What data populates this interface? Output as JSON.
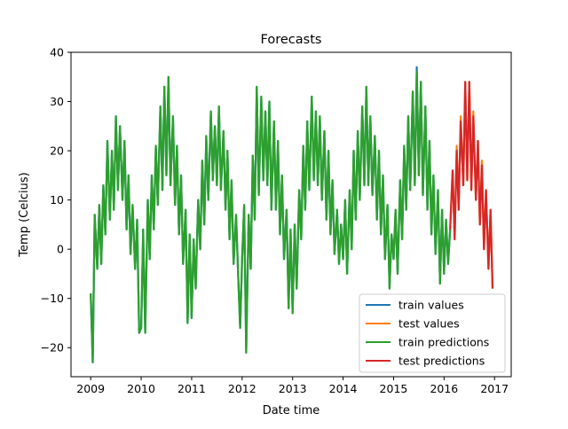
{
  "chart_data": {
    "type": "line",
    "title": "Forecasts",
    "xlabel": "Date time",
    "ylabel": "Temp (Celcius)",
    "xlim": [
      2008.61,
      2017.33
    ],
    "ylim": [
      -25.9,
      40
    ],
    "xticks": [
      2009,
      2010,
      2011,
      2012,
      2013,
      2014,
      2015,
      2016,
      2017
    ],
    "xtick_labels": [
      "2009",
      "2010",
      "2011",
      "2012",
      "2013",
      "2014",
      "2015",
      "2016",
      "2017"
    ],
    "yticks": [
      -20,
      -10,
      0,
      10,
      20,
      30,
      40
    ],
    "ytick_labels": [
      "−20",
      "−10",
      "0",
      "10",
      "20",
      "30",
      "40"
    ],
    "grid": false,
    "legend_position": "lower-right",
    "train_x": [
      2009.0,
      2009.04,
      2009.08,
      2009.13,
      2009.17,
      2009.21,
      2009.25,
      2009.29,
      2009.33,
      2009.38,
      2009.42,
      2009.46,
      2009.5,
      2009.54,
      2009.58,
      2009.63,
      2009.67,
      2009.71,
      2009.75,
      2009.79,
      2009.83,
      2009.88,
      2009.92,
      2009.96,
      2010.0,
      2010.04,
      2010.08,
      2010.13,
      2010.17,
      2010.21,
      2010.25,
      2010.29,
      2010.33,
      2010.38,
      2010.42,
      2010.46,
      2010.5,
      2010.54,
      2010.58,
      2010.63,
      2010.67,
      2010.71,
      2010.75,
      2010.79,
      2010.83,
      2010.88,
      2010.92,
      2010.96,
      2011.0,
      2011.04,
      2011.08,
      2011.13,
      2011.17,
      2011.21,
      2011.25,
      2011.29,
      2011.33,
      2011.38,
      2011.42,
      2011.46,
      2011.5,
      2011.54,
      2011.58,
      2011.63,
      2011.67,
      2011.71,
      2011.75,
      2011.79,
      2011.83,
      2011.88,
      2011.92,
      2011.96,
      2012.0,
      2012.04,
      2012.08,
      2012.13,
      2012.17,
      2012.21,
      2012.25,
      2012.29,
      2012.33,
      2012.38,
      2012.42,
      2012.46,
      2012.5,
      2012.54,
      2012.58,
      2012.63,
      2012.67,
      2012.71,
      2012.75,
      2012.79,
      2012.83,
      2012.88,
      2012.92,
      2012.96,
      2013.0,
      2013.04,
      2013.08,
      2013.13,
      2013.17,
      2013.21,
      2013.25,
      2013.29,
      2013.33,
      2013.38,
      2013.42,
      2013.46,
      2013.5,
      2013.54,
      2013.58,
      2013.63,
      2013.67,
      2013.71,
      2013.75,
      2013.79,
      2013.83,
      2013.88,
      2013.92,
      2013.96,
      2014.0,
      2014.04,
      2014.08,
      2014.13,
      2014.17,
      2014.21,
      2014.25,
      2014.29,
      2014.33,
      2014.38,
      2014.42,
      2014.46,
      2014.5,
      2014.54,
      2014.58,
      2014.63,
      2014.67,
      2014.71,
      2014.75,
      2014.79,
      2014.83,
      2014.88,
      2014.92,
      2014.96,
      2015.0,
      2015.04,
      2015.08,
      2015.13,
      2015.17,
      2015.21,
      2015.25,
      2015.29,
      2015.33,
      2015.38,
      2015.42,
      2015.46,
      2015.5,
      2015.54,
      2015.58,
      2015.63,
      2015.67,
      2015.71,
      2015.75,
      2015.79,
      2015.83,
      2015.88,
      2015.92,
      2015.96,
      2016.0,
      2016.04,
      2016.08,
      2016.12
    ],
    "test_x": [
      2016.12,
      2016.17,
      2016.21,
      2016.25,
      2016.29,
      2016.33,
      2016.38,
      2016.42,
      2016.46,
      2016.5,
      2016.54,
      2016.58,
      2016.63,
      2016.67,
      2016.71,
      2016.75,
      2016.79,
      2016.83,
      2016.88,
      2016.92,
      2016.96
    ],
    "series": [
      {
        "name": "train values",
        "color": "#1f77b4",
        "x_key": "train_x",
        "values": [
          -9,
          -23,
          7,
          -4,
          9,
          -3,
          13,
          3,
          22,
          6,
          20,
          8,
          27,
          12,
          25,
          10,
          22,
          4,
          15,
          -1,
          9,
          -4,
          6,
          -17,
          -16,
          4,
          -17,
          10,
          -2,
          15,
          4,
          21,
          9,
          29,
          12,
          33,
          15,
          35,
          13,
          27,
          9,
          21,
          3,
          15,
          -3,
          8,
          -15,
          3,
          -14,
          2,
          -8,
          10,
          0,
          18,
          5,
          23,
          10,
          28,
          14,
          25,
          13,
          29,
          12,
          24,
          8,
          20,
          2,
          14,
          -3,
          7,
          -5,
          -16,
          -2,
          9,
          -21,
          7,
          -4,
          19,
          6,
          33,
          11,
          31,
          14,
          28,
          13,
          30,
          8,
          26,
          8,
          22,
          3,
          15,
          -2,
          8,
          -12,
          4,
          -13,
          5,
          -8,
          12,
          2,
          21,
          8,
          26,
          12,
          31,
          14,
          28,
          13,
          27,
          10,
          24,
          6,
          20,
          3,
          14,
          -1,
          8,
          -3,
          5,
          -2,
          10,
          -5,
          12,
          0,
          20,
          6,
          24,
          10,
          29,
          13,
          33,
          13,
          27,
          11,
          23,
          6,
          20,
          3,
          15,
          -2,
          9,
          -8,
          3,
          -2,
          8,
          -5,
          14,
          2,
          21,
          8,
          27,
          12,
          32,
          13,
          37,
          15,
          34,
          11,
          29,
          8,
          22,
          3,
          15,
          -1,
          12,
          -7,
          8,
          -5,
          6,
          -3,
          4
        ]
      },
      {
        "name": "test values",
        "color": "#ff7f0e",
        "x_key": "test_x",
        "values": [
          4,
          16,
          2,
          21,
          8,
          27,
          13,
          34,
          14,
          34,
          12,
          28,
          10,
          22,
          5,
          18,
          0,
          12,
          -4,
          8,
          -8
        ]
      },
      {
        "name": "train predictions",
        "color": "#2ca02c",
        "x_key": "train_x",
        "values": [
          -9,
          -23,
          7,
          -4,
          9,
          -3,
          13,
          3,
          22,
          6,
          20,
          8,
          27,
          12,
          25,
          10,
          22,
          4,
          15,
          -1,
          9,
          -4,
          6,
          -17,
          -16,
          4,
          -17,
          10,
          -2,
          15,
          4,
          21,
          9,
          29,
          12,
          33,
          15,
          35,
          13,
          27,
          9,
          21,
          3,
          15,
          -3,
          8,
          -15,
          3,
          -14,
          2,
          -8,
          10,
          0,
          18,
          5,
          23,
          10,
          28,
          14,
          25,
          13,
          29,
          12,
          24,
          8,
          20,
          2,
          14,
          -3,
          7,
          -5,
          -16,
          -2,
          9,
          -21,
          7,
          -4,
          19,
          6,
          33,
          11,
          31,
          14,
          28,
          13,
          30,
          8,
          26,
          8,
          22,
          3,
          15,
          -2,
          8,
          -12,
          4,
          -13,
          5,
          -8,
          12,
          2,
          21,
          8,
          26,
          12,
          31,
          14,
          28,
          13,
          27,
          10,
          24,
          6,
          20,
          3,
          14,
          -1,
          8,
          -3,
          5,
          -2,
          10,
          -5,
          12,
          0,
          20,
          6,
          24,
          10,
          29,
          13,
          33,
          13,
          27,
          11,
          23,
          6,
          20,
          3,
          15,
          -2,
          9,
          -8,
          3,
          -2,
          8,
          -5,
          14,
          2,
          21,
          8,
          27,
          12,
          32,
          13,
          36,
          15,
          34,
          11,
          29,
          8,
          22,
          3,
          15,
          -1,
          12,
          -7,
          8,
          -5,
          6,
          -3,
          4
        ]
      },
      {
        "name": "test predictions",
        "color": "#d62728",
        "x_key": "test_x",
        "values": [
          4,
          16,
          2,
          20,
          8,
          26,
          13,
          34,
          14,
          34,
          12,
          27,
          10,
          22,
          5,
          17,
          0,
          12,
          -4,
          8,
          -8
        ]
      }
    ]
  }
}
